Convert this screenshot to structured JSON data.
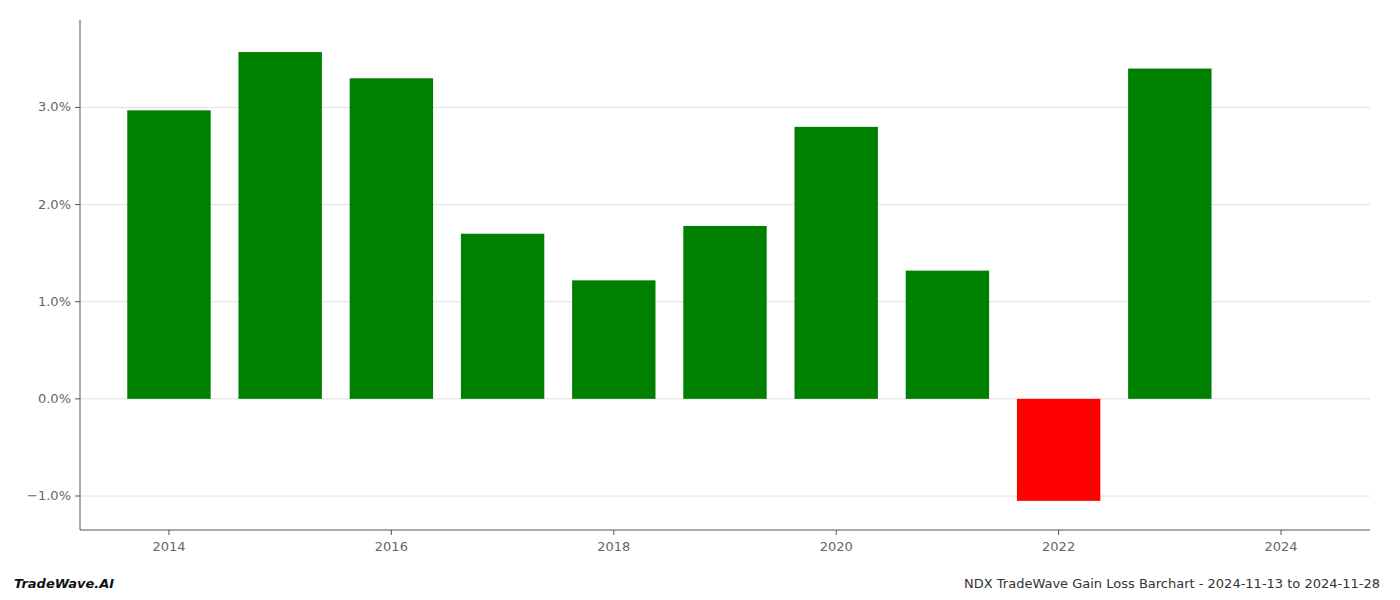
{
  "chart_data": {
    "type": "bar",
    "title": "NDX TradeWave Gain Loss Barchart - 2024-11-13 to 2024-11-28",
    "annotations": [
      "TradeWave.AI"
    ],
    "x": [
      2014,
      2015,
      2016,
      2017,
      2018,
      2019,
      2020,
      2021,
      2022,
      2023
    ],
    "values": [
      0.0297,
      0.0357,
      0.033,
      0.017,
      0.0122,
      0.0178,
      0.028,
      0.0132,
      -0.0105,
      0.034
    ],
    "colors": [
      "#008000",
      "#008000",
      "#008000",
      "#008000",
      "#008000",
      "#008000",
      "#008000",
      "#008000",
      "#ff0000",
      "#008000"
    ],
    "xlim": [
      2013.2,
      2024.8
    ],
    "xticks": [
      2014,
      2016,
      2018,
      2020,
      2022,
      2024
    ],
    "ylim": [
      -0.0135,
      0.039
    ],
    "yticks": [
      {
        "value": -0.01,
        "label": "−1.0%"
      },
      {
        "value": 0.0,
        "label": "0.0%"
      },
      {
        "value": 0.01,
        "label": "1.0%"
      },
      {
        "value": 0.02,
        "label": "2.0%"
      },
      {
        "value": 0.03,
        "label": "3.0%"
      }
    ],
    "grid": true
  }
}
